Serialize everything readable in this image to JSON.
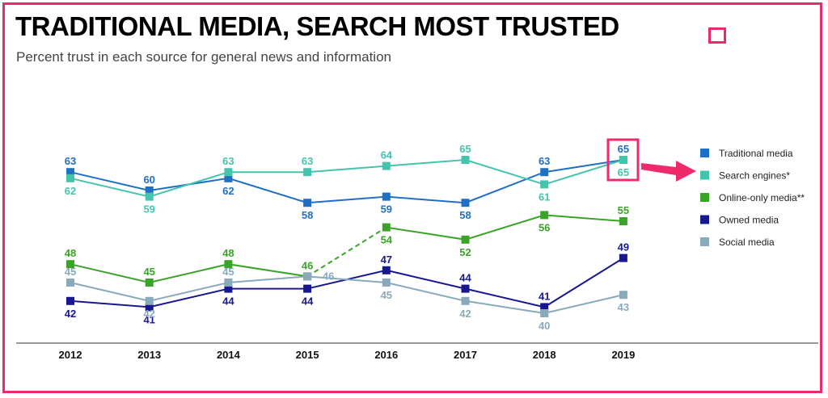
{
  "chart_data": {
    "type": "line",
    "title": "TRADITIONAL MEDIA, SEARCH MOST TRUSTED",
    "subtitle": "Percent trust in each source for general news and information",
    "categories": [
      "2012",
      "2013",
      "2014",
      "2015",
      "2016",
      "2017",
      "2018",
      "2019"
    ],
    "ylim": [
      40,
      65
    ],
    "legend_position": "right",
    "series": [
      {
        "name": "Traditional media",
        "color": "#1f6fc5",
        "values": [
          63,
          60,
          62,
          58,
          59,
          58,
          63,
          65
        ]
      },
      {
        "name": "Search engines*",
        "color": "#45c4ad",
        "values": [
          62,
          59,
          63,
          63,
          64,
          65,
          61,
          65
        ]
      },
      {
        "name": "Online-only media**",
        "color": "#3aa428",
        "values": [
          48,
          45,
          48,
          46,
          54,
          52,
          56,
          55
        ],
        "dashed_segment": [
          3,
          4
        ]
      },
      {
        "name": "Owned media",
        "color": "#17178f",
        "values": [
          42,
          41,
          44,
          44,
          47,
          44,
          41,
          49
        ]
      },
      {
        "name": "Social media",
        "color": "#88aabb",
        "values": [
          45,
          42,
          45,
          46,
          45,
          42,
          40,
          43
        ]
      }
    ],
    "data_labels": {
      "Traditional media": [
        "63",
        "60",
        "62",
        "58",
        "59",
        "58",
        "63",
        "65"
      ],
      "Search engines*": [
        "62",
        "59",
        "63",
        "63",
        "64",
        "65",
        "61",
        "65"
      ],
      "Online-only media**": [
        "48",
        "45",
        "48",
        "46",
        "54",
        "52",
        "56",
        "55"
      ],
      "Owned media": [
        "42",
        "41",
        "44",
        "44",
        "47",
        "44",
        "41",
        "49"
      ],
      "Social media": [
        "45",
        "42",
        "45",
        "46",
        "45",
        "42",
        "40",
        "43"
      ]
    }
  }
}
